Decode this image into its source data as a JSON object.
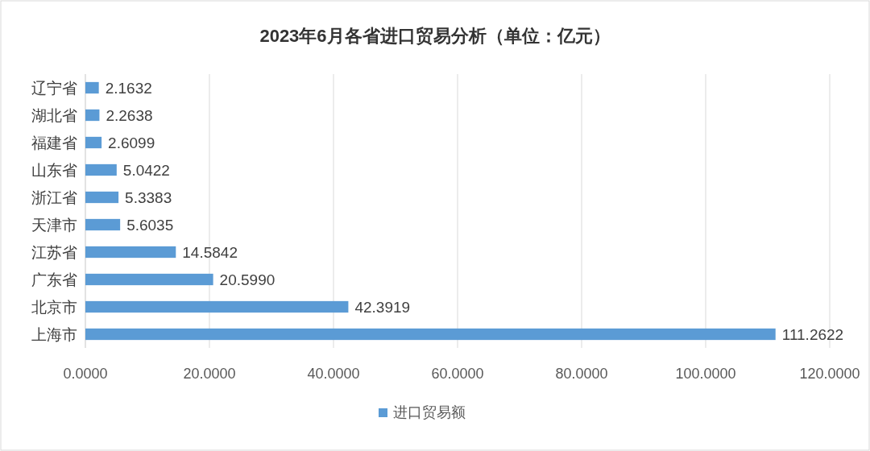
{
  "chart_data": {
    "type": "bar",
    "orientation": "horizontal",
    "title": "2023年6月各省进口贸易分析（单位：亿元）",
    "categories": [
      "辽宁省",
      "湖北省",
      "福建省",
      "山东省",
      "浙江省",
      "天津市",
      "江苏省",
      "广东省",
      "北京市",
      "上海市"
    ],
    "series": [
      {
        "name": "进口贸易额",
        "color": "#5b9bd5",
        "values": [
          2.1632,
          2.2638,
          2.6099,
          5.0422,
          5.3383,
          5.6035,
          14.5842,
          20.599,
          42.3919,
          111.2622
        ],
        "value_labels": [
          "2.1632",
          "2.2638",
          "2.6099",
          "5.0422",
          "5.3383",
          "5.6035",
          "14.5842",
          "20.5990",
          "42.3919",
          "111.2622"
        ]
      }
    ],
    "xlim": [
      0,
      120
    ],
    "xticks": [
      {
        "value": 0,
        "label": "0.0000"
      },
      {
        "value": 20,
        "label": "20.0000"
      },
      {
        "value": 40,
        "label": "40.0000"
      },
      {
        "value": 60,
        "label": "60.0000"
      },
      {
        "value": 80,
        "label": "80.0000"
      },
      {
        "value": 100,
        "label": "100.0000"
      },
      {
        "value": 120,
        "label": "120.0000"
      }
    ],
    "grid": "x",
    "legend": "bottom"
  }
}
